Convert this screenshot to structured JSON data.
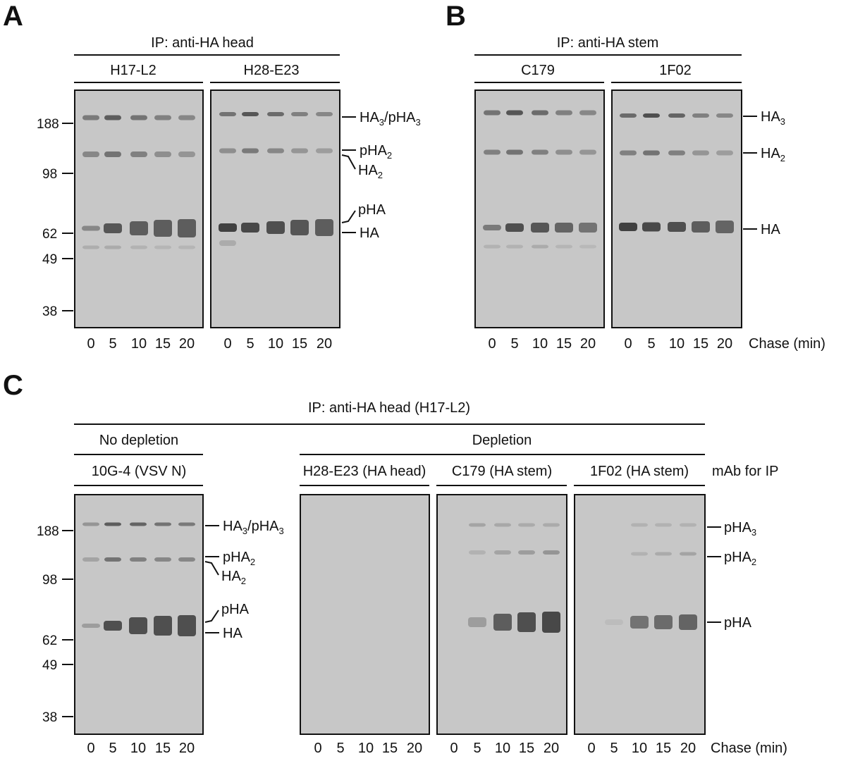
{
  "colors": {
    "gel_background": "#c7c7c7",
    "band": "#3a3a3a",
    "line": "#111111"
  },
  "panels": {
    "A": {
      "letter": "A",
      "ip_label": "IP: anti-HA head",
      "antibodies": [
        "H17-L2",
        "H28-E23"
      ],
      "mw_markers": [
        "188",
        "98",
        "62",
        "49",
        "38"
      ],
      "band_labels": {
        "ha3": {
          "main": "HA",
          "sub": "3",
          "mid": "/pHA",
          "sub2": "3"
        },
        "pha2": {
          "main": "pHA",
          "sub": "2"
        },
        "ha2": {
          "main": "HA",
          "sub": "2"
        },
        "pha": "pHA",
        "ha": "HA"
      },
      "lanes": [
        "0",
        "5",
        "10",
        "15",
        "20"
      ]
    },
    "B": {
      "letter": "B",
      "ip_label": "IP: anti-HA stem",
      "antibodies": [
        "C179",
        "1F02"
      ],
      "band_labels": {
        "ha3": {
          "main": "HA",
          "sub": "3"
        },
        "ha2": {
          "main": "HA",
          "sub": "2"
        },
        "ha": "HA"
      },
      "lanes": [
        "0",
        "5",
        "10",
        "15",
        "20"
      ],
      "chase_label": "Chase (min)"
    },
    "C": {
      "letter": "C",
      "ip_label": "IP: anti-HA head (H17-L2)",
      "no_depletion_label": "No depletion",
      "depletion_label": "Depletion",
      "antibodies": [
        "10G-4 (VSV N)",
        "H28-E23 (HA head)",
        "C179 (HA stem)",
        "1F02 (HA stem)"
      ],
      "mab_label": "mAb for IP",
      "mw_markers": [
        "188",
        "98",
        "62",
        "49",
        "38"
      ],
      "left_band_labels": {
        "ha3": {
          "main": "HA",
          "sub": "3",
          "mid": "/pHA",
          "sub2": "3"
        },
        "pha2": {
          "main": "pHA",
          "sub": "2"
        },
        "ha2": {
          "main": "HA",
          "sub": "2"
        },
        "pha": "pHA",
        "ha": "HA"
      },
      "right_band_labels": {
        "pha3": {
          "main": "pHA",
          "sub": "3"
        },
        "pha2": {
          "main": "pHA",
          "sub": "2"
        },
        "pha": "pHA"
      },
      "lanes": [
        "0",
        "5",
        "10",
        "15",
        "20"
      ],
      "chase_label": "Chase (min)"
    }
  }
}
